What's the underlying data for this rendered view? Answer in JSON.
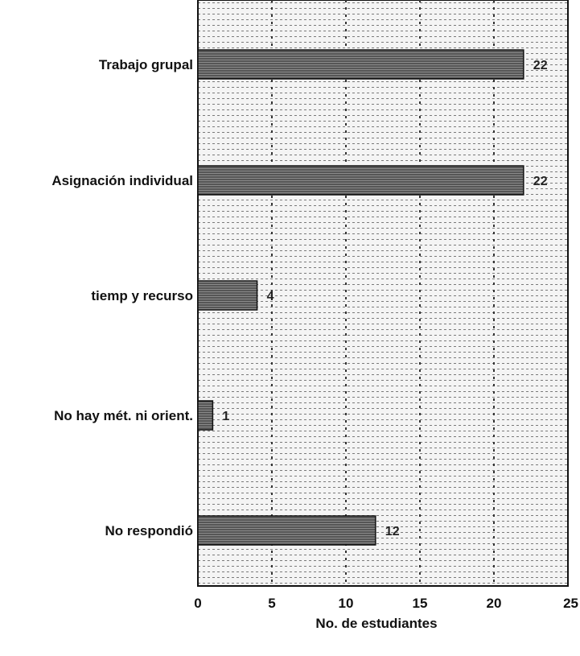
{
  "chart_data": {
    "type": "bar",
    "orientation": "horizontal",
    "categories": [
      "Trabajo grupal",
      "Asignación individual",
      "tiemp y recurso",
      "No hay mét. ni orient.",
      "No respondió"
    ],
    "values": [
      22,
      22,
      4,
      1,
      12
    ],
    "data_labels": [
      "22",
      "22",
      "4",
      "1",
      "12"
    ],
    "xlabel": "No. de estudiantes",
    "ylabel": "",
    "title": "",
    "xlim": [
      0,
      25
    ],
    "xticks": [
      "0",
      "5",
      "10",
      "15",
      "20",
      "25"
    ],
    "grid": true,
    "colors": {
      "bar_fill": "#7a7a7a",
      "bar_stripe": "#222222",
      "plot_background": "#f4f4f4",
      "grid_line": "#333333"
    }
  }
}
